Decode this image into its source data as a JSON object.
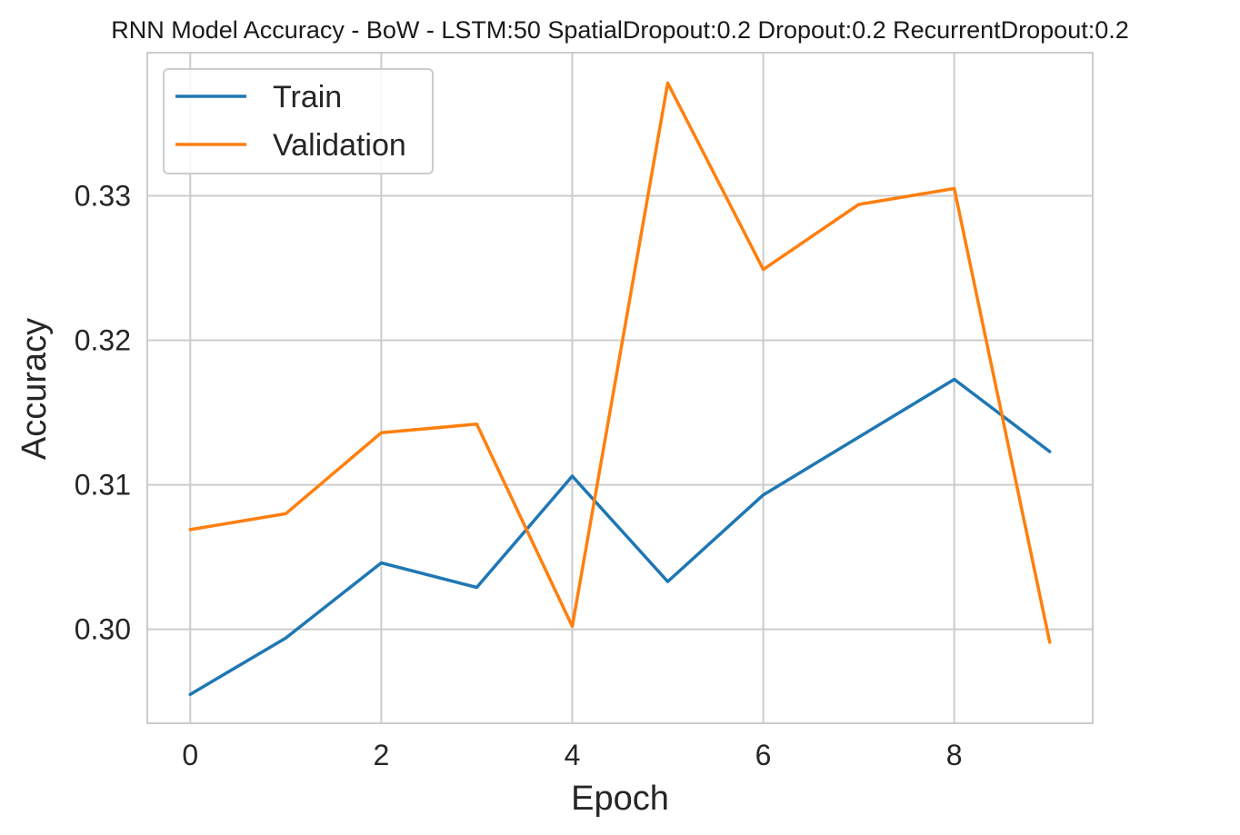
{
  "chart_data": {
    "type": "line",
    "title": "RNN Model Accuracy - BoW - LSTM:50 SpatialDropout:0.2 Dropout:0.2 RecurrentDropout:0.2",
    "xlabel": "Epoch",
    "ylabel": "Accuracy",
    "x": [
      0,
      1,
      2,
      3,
      4,
      5,
      6,
      7,
      8,
      9
    ],
    "xlim": [
      -0.45,
      9.45
    ],
    "ylim": [
      0.2935,
      0.3399
    ],
    "xticks": [
      0,
      2,
      4,
      6,
      8
    ],
    "xtick_labels": [
      "0",
      "2",
      "4",
      "6",
      "8"
    ],
    "yticks": [
      0.3,
      0.31,
      0.32,
      0.33
    ],
    "ytick_labels": [
      "0.30",
      "0.31",
      "0.32",
      "0.33"
    ],
    "grid": true,
    "legend_position": "top-left",
    "series": [
      {
        "name": "Train",
        "color": "#1f77b4",
        "values": [
          0.2955,
          0.2994,
          0.3046,
          0.3029,
          0.3106,
          0.3033,
          0.3093,
          0.3133,
          0.3173,
          0.3123
        ]
      },
      {
        "name": "Validation",
        "color": "#ff7f0e",
        "values": [
          0.3069,
          0.308,
          0.3136,
          0.3142,
          0.3002,
          0.3378,
          0.3249,
          0.3294,
          0.3305,
          0.2991
        ]
      }
    ]
  }
}
